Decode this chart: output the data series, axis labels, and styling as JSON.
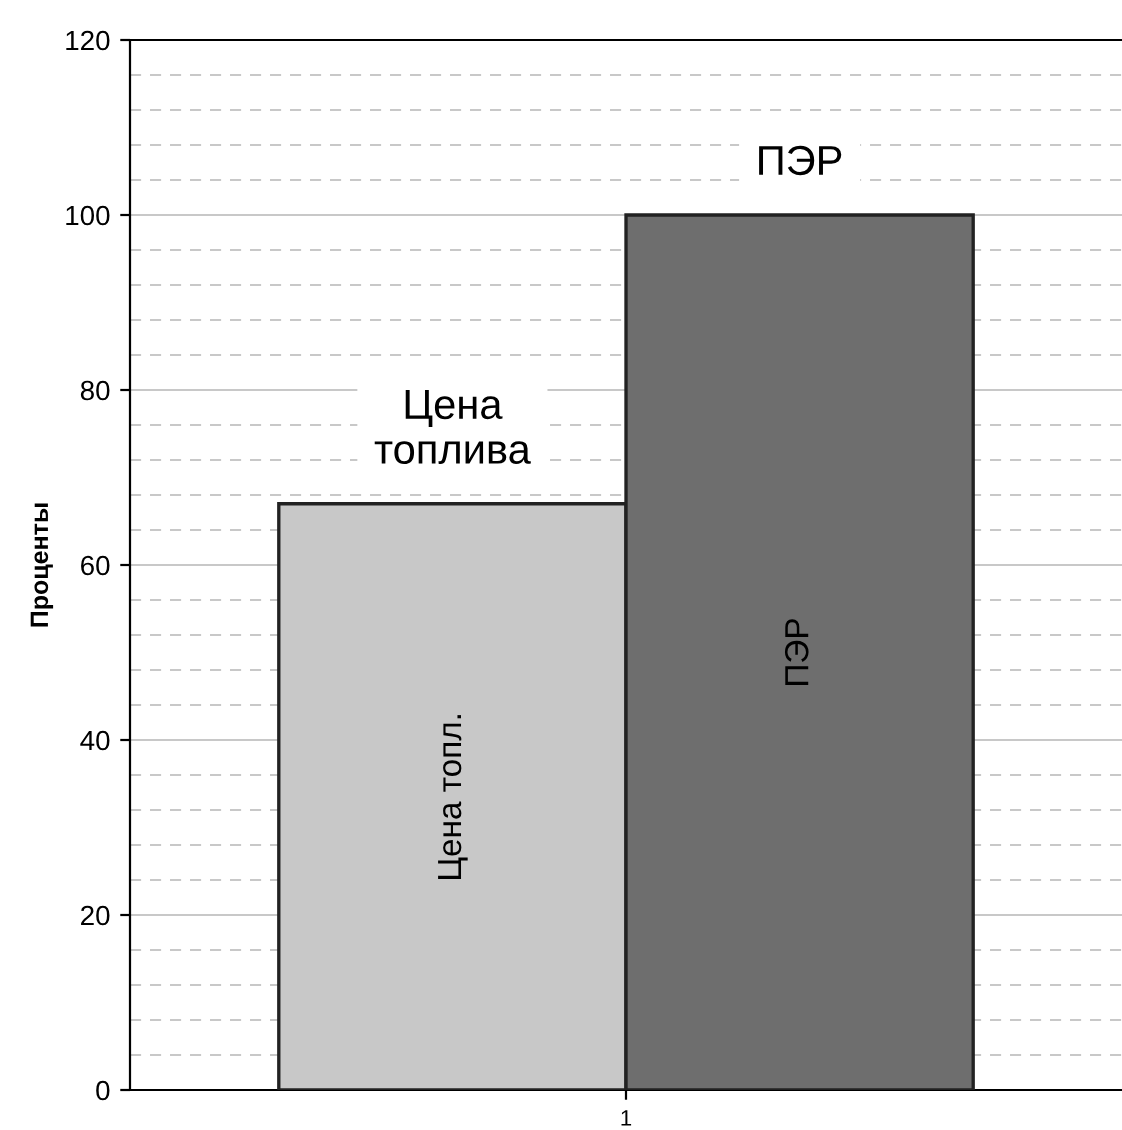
{
  "chart_data": {
    "type": "bar",
    "categories": [
      "1"
    ],
    "ylabel": "Проценты",
    "series": [
      {
        "name": "Цена топл.",
        "color": "#c8c8c8",
        "values": [
          67
        ]
      },
      {
        "name": "ПЭР",
        "color": "#6e6e6e",
        "values": [
          100
        ]
      }
    ],
    "annotations": [
      "Цена топлива",
      "ПЭР"
    ],
    "ylim": [
      0,
      120
    ],
    "yticks": [
      0,
      20,
      40,
      60,
      80,
      100,
      120
    ],
    "grid": "y",
    "legend": false
  }
}
